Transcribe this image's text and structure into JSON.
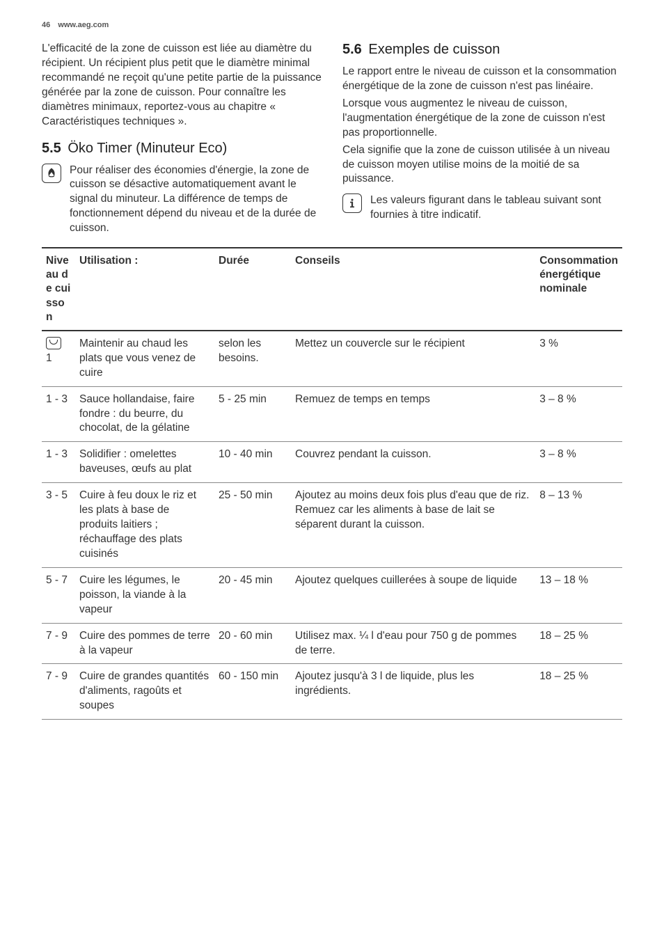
{
  "header": {
    "page_number": "46",
    "site": "www.aeg.com"
  },
  "left_column": {
    "para1": "L'efficacité de la zone de cuisson est liée au diamètre du récipient. Un récipient plus petit que le diamètre minimal recommandé ne reçoit qu'une petite partie de la puissance générée par la zone de cuisson. Pour connaître les diamètres minimaux, reportez-vous au chapitre « Caractéristiques techniques ».",
    "section55_num": "5.5",
    "section55_title": "Öko Timer (Minuteur Eco)",
    "eco_note": "Pour réaliser des économies d'énergie, la zone de cuisson se désactive automatiquement avant le signal du minuteur. La différence de temps de fonctionnement dépend du niveau et de la durée de cuisson."
  },
  "right_column": {
    "section56_num": "5.6",
    "section56_title": "Exemples de cuisson",
    "para1": "Le rapport entre le niveau de cuisson et la consommation énergétique de la zone de cuisson n'est pas linéaire.",
    "para2": "Lorsque vous augmentez le niveau de cuisson, l'augmentation énergétique de la zone de cuisson n'est pas proportionnelle.",
    "para3": "Cela signifie que la zone de cuisson utilisée à un niveau de cuisson moyen utilise moins de la moitié de sa puissance.",
    "info_note": "Les valeurs figurant dans le tableau suivant sont fournies à titre indicatif."
  },
  "table": {
    "headers": {
      "niveau": "Niveau de cuisson",
      "utilisation": "Utilisation :",
      "duree": "Durée",
      "conseils": "Conseils",
      "consommation": "Consommation énergétique nominale"
    },
    "rows": [
      {
        "niveau": "1",
        "has_icon": true,
        "utilisation": "Maintenir au chaud les plats que vous venez de cuire",
        "duree": "selon les besoins.",
        "conseils": "Mettez un couvercle sur le récipient",
        "consommation": "3 %"
      },
      {
        "niveau": "1 - 3",
        "utilisation": "Sauce hollandaise, faire fondre : du beurre, du chocolat, de la gélatine",
        "duree": "5 - 25 min",
        "conseils": "Remuez de temps en temps",
        "consommation": "3 – 8 %"
      },
      {
        "niveau": "1 - 3",
        "utilisation": "Solidifier : omelettes baveuses, œufs au plat",
        "duree": "10 - 40 min",
        "conseils": "Couvrez pendant la cuisson.",
        "consommation": "3 – 8 %"
      },
      {
        "niveau": "3 - 5",
        "utilisation": "Cuire à feu doux le riz et les plats à base de produits laitiers ; réchauffage des plats cuisinés",
        "duree": "25 - 50 min",
        "conseils": "Ajoutez au moins deux fois plus d'eau que de riz. Remuez car les aliments à base de lait se séparent durant la cuisson.",
        "consommation": "8 – 13 %"
      },
      {
        "niveau": "5 - 7",
        "utilisation": "Cuire les légumes, le poisson, la viande à la vapeur",
        "duree": "20 - 45 min",
        "conseils": "Ajoutez quelques cuillerées à soupe de liquide",
        "consommation": "13 – 18 %"
      },
      {
        "niveau": "7 - 9",
        "utilisation": "Cuire des pommes de terre à la vapeur",
        "duree": "20 - 60 min",
        "conseils": "Utilisez max. ¼ l d'eau pour 750 g de pommes de terre.",
        "consommation": "18 – 25 %"
      },
      {
        "niveau": "7 - 9",
        "utilisation": "Cuire de grandes quantités d'aliments, ragoûts et soupes",
        "duree": "60 - 150 min",
        "conseils": "Ajoutez jusqu'à 3 l de liquide, plus les ingrédients.",
        "consommation": "18 – 25 %"
      }
    ]
  }
}
